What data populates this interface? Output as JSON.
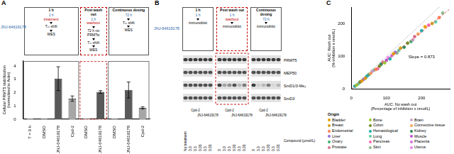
{
  "chart_data": [
    {
      "type": "bar",
      "panel": "A",
      "compound": "JNJ-64619178",
      "y_label": [
        "Cellular PRMT5 stabilization",
        "(normalized to Actin)"
      ],
      "ylim": [
        0,
        4.4
      ],
      "yticks": [
        0,
        1,
        2,
        3,
        4
      ],
      "grid": false,
      "groups": [
        {
          "title": "1 h",
          "color": "#555555",
          "line_style": "solid",
          "steps": [
            [
              {
                "text": "1 h",
                "color": "#1f5fa8"
              },
              {
                "text": "treatment",
                "color": "#c00000"
              }
            ],
            [
              {
                "text": "Tₘ shift",
                "color": "#000000"
              }
            ],
            [
              {
                "text": "WES",
                "color": "#000000"
              }
            ]
          ],
          "categories": [
            "T = 0 h",
            "DMSO",
            "JNJ-64619178",
            "Cpd-2"
          ],
          "values": [
            0.05,
            0.05,
            3.05,
            1.55
          ],
          "errors": [
            null,
            null,
            0.9,
            0.2
          ],
          "colors": [
            "#ffffff",
            "#d9d9d9",
            "#595959",
            "#a6a6a6"
          ]
        },
        {
          "title": "Post wash out",
          "color": "#c00000",
          "line_style": "dashed",
          "steps": [
            [
              {
                "text": "1 h",
                "color": "#1f5fa8"
              },
              {
                "text": "washout",
                "color": "#c00000"
              }
            ],
            [
              {
                "text": "72 h no PRMTsi",
                "color": "#000000"
              }
            ],
            [
              {
                "text": "Tₘ shift",
                "color": "#000000"
              }
            ],
            [
              {
                "text": "WES",
                "color": "#000000"
              }
            ]
          ],
          "categories": [
            "DMSO",
            "JNJ-64619178"
          ],
          "values": [
            0.05,
            2.05
          ],
          "errors": [
            null,
            0.1
          ],
          "colors": [
            "#d9d9d9",
            "#595959"
          ]
        },
        {
          "title": "Continuous dosing",
          "color": "#555555",
          "line_style": "solid",
          "steps": [
            [
              {
                "text": "72 h",
                "color": "#1f5fa8"
              }
            ],
            [
              {
                "text": "Tₘ shift",
                "color": "#000000"
              }
            ],
            [
              {
                "text": "WES",
                "color": "#000000"
              }
            ]
          ],
          "categories": [
            "DMSO",
            "JNJ-64619178",
            "Cpd-2"
          ],
          "values": [
            0.05,
            2.2,
            0.85
          ],
          "errors": [
            null,
            0.6,
            0.08
          ],
          "colors": [
            "#d9d9d9",
            "#595959",
            "#a6a6a6"
          ]
        }
      ]
    },
    {
      "type": "scatter",
      "panel": "C",
      "x_label": [
        "AUC: No wash out",
        "(Percentage of inhibition x nmol/L)"
      ],
      "y_label": [
        "AUC: Wash out",
        "(% inhibition x nmol/L)"
      ],
      "xlim": [
        0,
        280
      ],
      "ylim": [
        0,
        250
      ],
      "xticks": [
        0,
        100,
        200
      ],
      "yticks": [
        0,
        100,
        200
      ],
      "grid": false,
      "legend_title": "Origin",
      "annotation": "Slope = 0.873",
      "lines": [
        {
          "x": [
            0,
            250
          ],
          "y": [
            0,
            250
          ],
          "color": "#888888",
          "line_style": "dotted"
        },
        {
          "x": [
            0,
            280
          ],
          "y": [
            0,
            244
          ],
          "color": "#e06060",
          "line_style": "dashed"
        }
      ],
      "series": [
        {
          "name": "Bladder",
          "color": "#e69f00",
          "x": [
            30,
            120,
            210
          ],
          "y": [
            25,
            108,
            190
          ]
        },
        {
          "name": "Bone",
          "color": "#9acd32",
          "x": [
            15,
            95
          ],
          "y": [
            12,
            80
          ]
        },
        {
          "name": "Brain",
          "color": "#c8a2c8",
          "x": [
            60,
            175
          ],
          "y": [
            55,
            150
          ]
        },
        {
          "name": "Breast",
          "color": "#d4a017",
          "x": [
            40,
            140,
            230
          ],
          "y": [
            33,
            125,
            200
          ]
        },
        {
          "name": "Colon",
          "color": "#6b8e23",
          "x": [
            25,
            80,
            160
          ],
          "y": [
            22,
            70,
            140
          ]
        },
        {
          "name": "Connective tissue",
          "color": "#f4a460",
          "x": [
            55,
            190
          ],
          "y": [
            48,
            168
          ]
        },
        {
          "name": "Endometrial",
          "color": "#ff7f50",
          "x": [
            70,
            250
          ],
          "y": [
            60,
            218
          ]
        },
        {
          "name": "Hematological",
          "color": "#20b2aa",
          "x": [
            10,
            45,
            110,
            200
          ],
          "y": [
            9,
            40,
            92,
            178
          ]
        },
        {
          "name": "Kidney",
          "color": "#2e8b57",
          "x": [
            85,
            150
          ],
          "y": [
            76,
            128
          ]
        },
        {
          "name": "Liver",
          "color": "#9370db",
          "x": [
            35,
            125
          ],
          "y": [
            30,
            112
          ]
        },
        {
          "name": "Lung",
          "color": "#66cdaa",
          "x": [
            20,
            65,
            135,
            240
          ],
          "y": [
            16,
            58,
            118,
            205
          ]
        },
        {
          "name": "Muscle",
          "color": "#ba55d3",
          "x": [
            100
          ],
          "y": [
            88
          ]
        },
        {
          "name": "Ovary",
          "color": "#3cb371",
          "x": [
            50,
            170
          ],
          "y": [
            44,
            145
          ]
        },
        {
          "name": "Pancreas",
          "color": "#ff69b4",
          "x": [
            75,
            220
          ],
          "y": [
            62,
            195
          ]
        },
        {
          "name": "Placenta",
          "color": "#da70d6",
          "x": [
            115
          ],
          "y": [
            102
          ]
        },
        {
          "name": "Prostate",
          "color": "#db7093",
          "x": [
            90,
            180
          ],
          "y": [
            82,
            160
          ]
        },
        {
          "name": "Skin",
          "color": "#8fbc8f",
          "x": [
            42,
            130,
            260
          ],
          "y": [
            36,
            110,
            232
          ]
        },
        {
          "name": "Uterus",
          "color": "#ee82ee",
          "x": [
            105
          ],
          "y": [
            96
          ]
        }
      ]
    }
  ],
  "blot": {
    "panel": "B",
    "compound": "JNJ-64619178",
    "axis_label": "Compound (µmol/L)",
    "groups": [
      {
        "title": "1 h",
        "color": "#555555",
        "line_style": "solid",
        "steps": [
          [
            {
              "text": "1 h",
              "color": "#1f5fa8"
            }
          ],
          [
            {
              "text": "immunoblot",
              "color": "#000000"
            }
          ]
        ],
        "lanes": [
          {
            "label": "No treatment",
            "compound": null
          },
          {
            "label": "3.0",
            "compound": "Cpd-2"
          },
          {
            "label": "0.3",
            "compound": "Cpd-2"
          },
          {
            "label": "0.03",
            "compound": "Cpd-2"
          },
          {
            "label": "0.3",
            "compound": "JNJ-64619178"
          },
          {
            "label": "0.03",
            "compound": "JNJ-64619178"
          }
        ]
      },
      {
        "title": "Post wash out",
        "color": "#c00000",
        "line_style": "dashed",
        "steps": [
          [
            {
              "text": "1 h",
              "color": "#1f5fa8"
            },
            {
              "text": "washout",
              "color": "#c00000"
            }
          ],
          [
            {
              "text": "immunoblot",
              "color": "#000000"
            }
          ]
        ],
        "lanes": [
          {
            "label": "0",
            "compound": null
          },
          {
            "label": "3.0",
            "compound": "Cpd-2"
          },
          {
            "label": "0.3",
            "compound": "Cpd-2"
          },
          {
            "label": "0.03",
            "compound": "Cpd-2"
          },
          {
            "label": "0.3",
            "compound": "JNJ-64619178"
          },
          {
            "label": "0.03",
            "compound": "JNJ-64619178"
          }
        ]
      },
      {
        "title": "Continuous dosing",
        "color": "#555555",
        "line_style": "solid",
        "steps": [
          [
            {
              "text": "72 h",
              "color": "#1f5fa8"
            }
          ],
          [
            {
              "text": "immunoblot",
              "color": "#000000"
            }
          ]
        ],
        "lanes": [
          {
            "label": "0",
            "compound": null
          },
          {
            "label": "3.0",
            "compound": "Cpd-2"
          },
          {
            "label": "0.3",
            "compound": "Cpd-2"
          },
          {
            "label": "0.03",
            "compound": "Cpd-2"
          },
          {
            "label": "0.3",
            "compound": "JNJ-64619178"
          },
          {
            "label": "0.03",
            "compound": "JNJ-64619178"
          }
        ]
      }
    ],
    "rows": [
      {
        "name": "PRMT5",
        "bands": [
          0.8,
          0.8,
          0.8,
          0.8,
          0.8,
          0.8,
          0.8,
          0.8,
          0.8,
          0.8,
          0.8,
          0.8,
          0.8,
          0.8,
          0.8,
          0.8,
          0.8,
          0.8
        ]
      },
      {
        "name": "MEP50",
        "bands": [
          0.7,
          0.7,
          0.7,
          0.7,
          0.7,
          0.7,
          0.7,
          0.7,
          0.7,
          0.7,
          0.7,
          0.7,
          0.7,
          0.7,
          0.7,
          0.7,
          0.7,
          0.7
        ]
      },
      {
        "name": "SmD1/3-Me₂",
        "bands": [
          0.7,
          0.7,
          0.7,
          0.7,
          0.7,
          0.7,
          0.8,
          0.3,
          0.4,
          0.7,
          0.2,
          0.5,
          0.8,
          0.1,
          0.2,
          0.5,
          0.05,
          0.2
        ]
      },
      {
        "name": "SmD3",
        "bands": [
          0.7,
          0.7,
          0.7,
          0.7,
          0.7,
          0.7,
          0.7,
          0.7,
          0.7,
          0.7,
          0.7,
          0.7,
          0.7,
          0.7,
          0.7,
          0.7,
          0.7,
          0.7
        ]
      }
    ]
  }
}
